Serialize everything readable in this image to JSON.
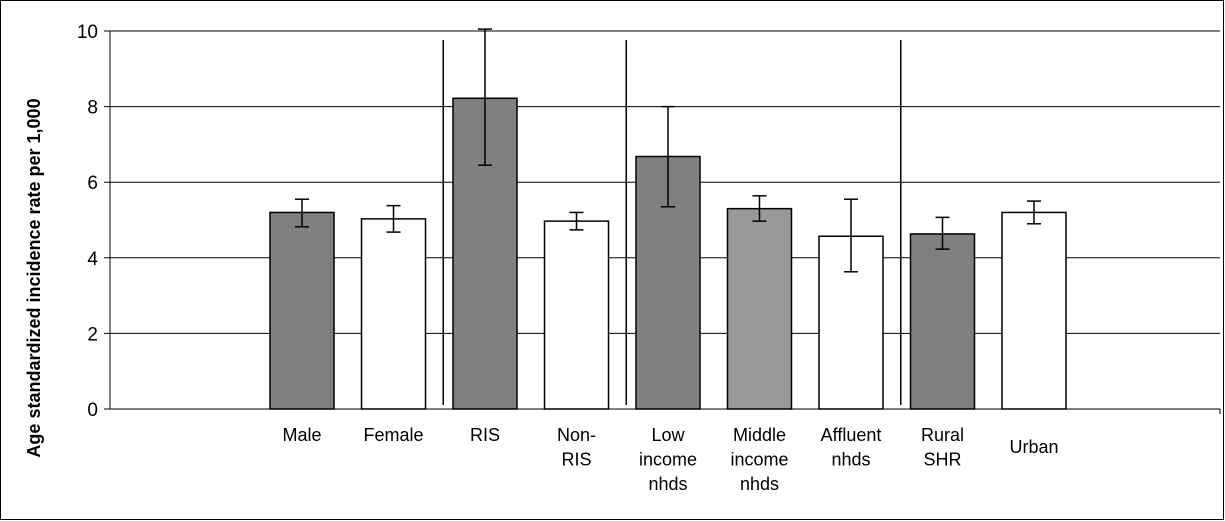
{
  "chart_data": {
    "type": "bar",
    "title": "",
    "xlabel": "",
    "ylabel": "Age standardized incidence rate per 1,000",
    "ylim": [
      0,
      10
    ],
    "yticks": [
      "0",
      "2",
      "4",
      "6",
      "8",
      "10"
    ],
    "grid": true,
    "legend": "none",
    "categories": [
      [
        "Male"
      ],
      [
        "Female"
      ],
      [
        "RIS"
      ],
      [
        "Non-",
        "RIS"
      ],
      [
        "Low",
        "income",
        "nhds"
      ],
      [
        "Middle",
        "income",
        "nhds"
      ],
      [
        "Affluent",
        "nhds"
      ],
      [
        "Rural",
        "SHR"
      ],
      [
        "Urban"
      ]
    ],
    "values": [
      5.2,
      5.03,
      8.22,
      4.97,
      6.68,
      5.3,
      4.57,
      4.63,
      5.2
    ],
    "error_low": [
      4.82,
      4.68,
      6.45,
      4.74,
      5.35,
      4.97,
      3.63,
      4.23,
      4.9
    ],
    "error_high": [
      5.55,
      5.38,
      10.05,
      5.2,
      8.0,
      5.64,
      5.55,
      5.07,
      5.5
    ],
    "bar_colors": [
      "#808080",
      "#ffffff",
      "#808080",
      "#ffffff",
      "#808080",
      "#999999",
      "#ffffff",
      "#808080",
      "#ffffff"
    ]
  }
}
